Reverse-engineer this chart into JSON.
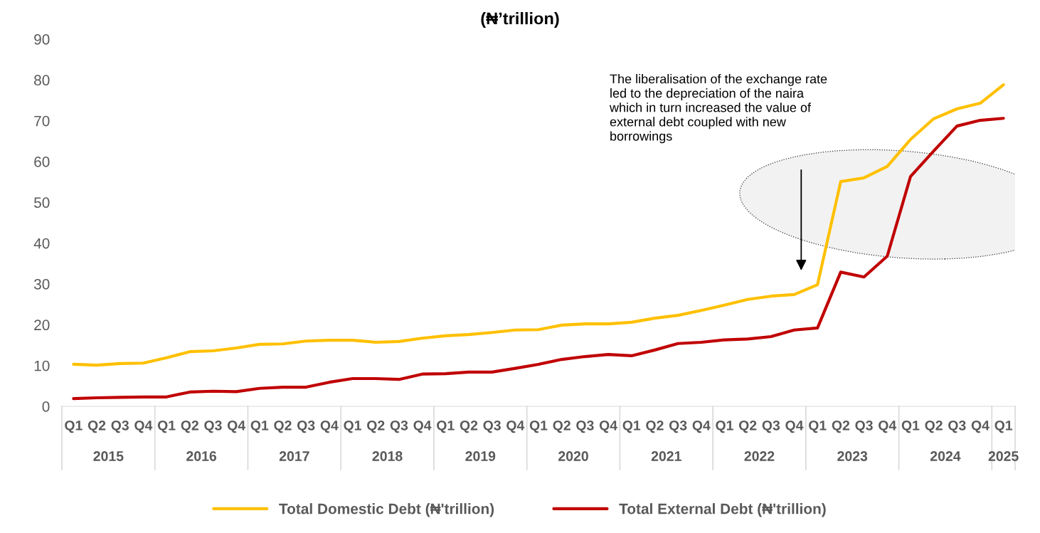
{
  "chart_data": {
    "type": "line",
    "title": "(₦’trillion)",
    "categories": [
      "Q1",
      "Q2",
      "Q3",
      "Q4",
      "Q1",
      "Q2",
      "Q3",
      "Q4",
      "Q1",
      "Q2",
      "Q3",
      "Q4",
      "Q1",
      "Q2",
      "Q3",
      "Q4",
      "Q1",
      "Q2",
      "Q3",
      "Q4",
      "Q1",
      "Q2",
      "Q3",
      "Q4",
      "Q1",
      "Q2",
      "Q3",
      "Q4",
      "Q1",
      "Q2",
      "Q3",
      "Q4",
      "Q1",
      "Q2",
      "Q3",
      "Q4",
      "Q1",
      "Q2",
      "Q3",
      "Q4",
      "Q1"
    ],
    "series": [
      {
        "name": "Total Domestic Debt (₦'trillion)",
        "color": "#ffc000",
        "values": [
          10.3,
          10.1,
          10.5,
          10.6,
          11.9,
          13.4,
          13.6,
          14.3,
          15.2,
          15.3,
          16.0,
          16.2,
          16.2,
          15.7,
          15.9,
          16.7,
          17.3,
          17.6,
          18.1,
          18.7,
          18.8,
          19.9,
          20.2,
          20.2,
          20.6,
          21.6,
          22.3,
          23.5,
          24.8,
          26.2,
          27.0,
          27.4,
          29.8,
          55.1,
          56.0,
          58.8,
          65.4,
          70.5,
          72.9,
          74.3,
          78.8
        ]
      },
      {
        "name": "Total External Debt (₦'trillion)",
        "color": "#c00000",
        "values": [
          1.9,
          2.1,
          2.2,
          2.3,
          2.3,
          3.5,
          3.7,
          3.6,
          4.4,
          4.7,
          4.7,
          5.9,
          6.8,
          6.8,
          6.6,
          7.9,
          8.0,
          8.4,
          8.4,
          9.3,
          10.3,
          11.5,
          12.2,
          12.7,
          12.4,
          13.8,
          15.4,
          15.7,
          16.3,
          16.5,
          17.1,
          18.7,
          19.2,
          32.9,
          31.7,
          36.8,
          56.3,
          62.6,
          68.7,
          70.1,
          70.6
        ]
      }
    ],
    "annotations": [
      "The liberalisation of the exchange rate\nled to the depreciation of the naira\nwhich in turn increased the value of\nexternal debt coupled with new\nborrowings",
      "2015",
      "2016",
      "2017",
      "2018",
      "2019",
      "2020",
      "2021",
      "2022",
      "2023",
      "2024",
      "2025"
    ],
    "ylim": [
      0,
      90
    ],
    "yticks": [
      0,
      10,
      20,
      30,
      40,
      50,
      60,
      70,
      80,
      90
    ],
    "grid": false,
    "legend": "bottom",
    "marker": "none",
    "line_style": "solid"
  }
}
